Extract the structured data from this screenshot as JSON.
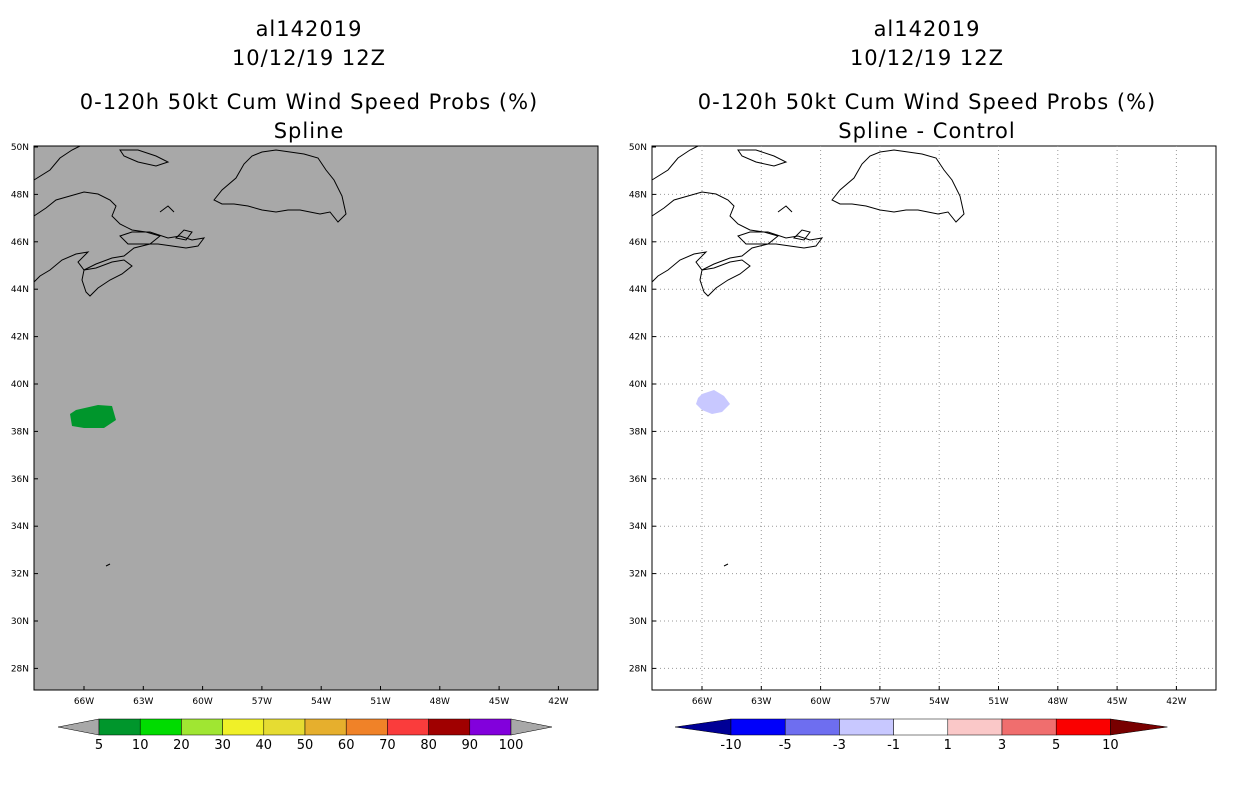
{
  "panels": [
    {
      "storm": "al142019",
      "datetime": "10/12/19 12Z",
      "product": "0-120h 50kt Cum Wind Speed Probs (%)",
      "subtitle": "Spline",
      "background": "#a8a8a8",
      "gridlines": false,
      "lat_labels": [
        "50N",
        "48N",
        "46N",
        "44N",
        "42N",
        "40N",
        "38N",
        "36N",
        "34N",
        "32N",
        "30N",
        "28N"
      ],
      "lon_labels": [
        "66W",
        "63W",
        "60W",
        "57W",
        "54W",
        "51W",
        "48W",
        "45W",
        "42W"
      ],
      "feature_color": "#00962c",
      "colorbar": {
        "colors": [
          "#00962c",
          "#00dc00",
          "#a0e632",
          "#f0f028",
          "#e6dc32",
          "#e6af2d",
          "#f08228",
          "#fa3c3c",
          "#a00000",
          "#8200dc"
        ],
        "end_color": "#a8a8a8",
        "labels": [
          "5",
          "10",
          "20",
          "30",
          "40",
          "50",
          "60",
          "70",
          "80",
          "90",
          "100"
        ]
      }
    },
    {
      "storm": "al142019",
      "datetime": "10/12/19 12Z",
      "product": "0-120h 50kt Cum Wind Speed Probs (%)",
      "subtitle": "Spline - Control",
      "background": "#ffffff",
      "gridlines": true,
      "lat_labels": [
        "50N",
        "48N",
        "46N",
        "44N",
        "42N",
        "40N",
        "38N",
        "36N",
        "34N",
        "32N",
        "30N",
        "28N"
      ],
      "lon_labels": [
        "66W",
        "63W",
        "60W",
        "57W",
        "54W",
        "51W",
        "48W",
        "45W",
        "42W"
      ],
      "feature_color": "#c8c8ff",
      "colorbar": {
        "colors": [
          "#0000fa",
          "#6e6ef0",
          "#c8c8ff",
          "#ffffff",
          "#fac8c8",
          "#f06e6e",
          "#fa0000"
        ],
        "left_end_color": "#000096",
        "right_end_color": "#780000",
        "labels": [
          "-10",
          "-5",
          "-3",
          "-1",
          "1",
          "3",
          "5",
          "10"
        ]
      }
    }
  ]
}
